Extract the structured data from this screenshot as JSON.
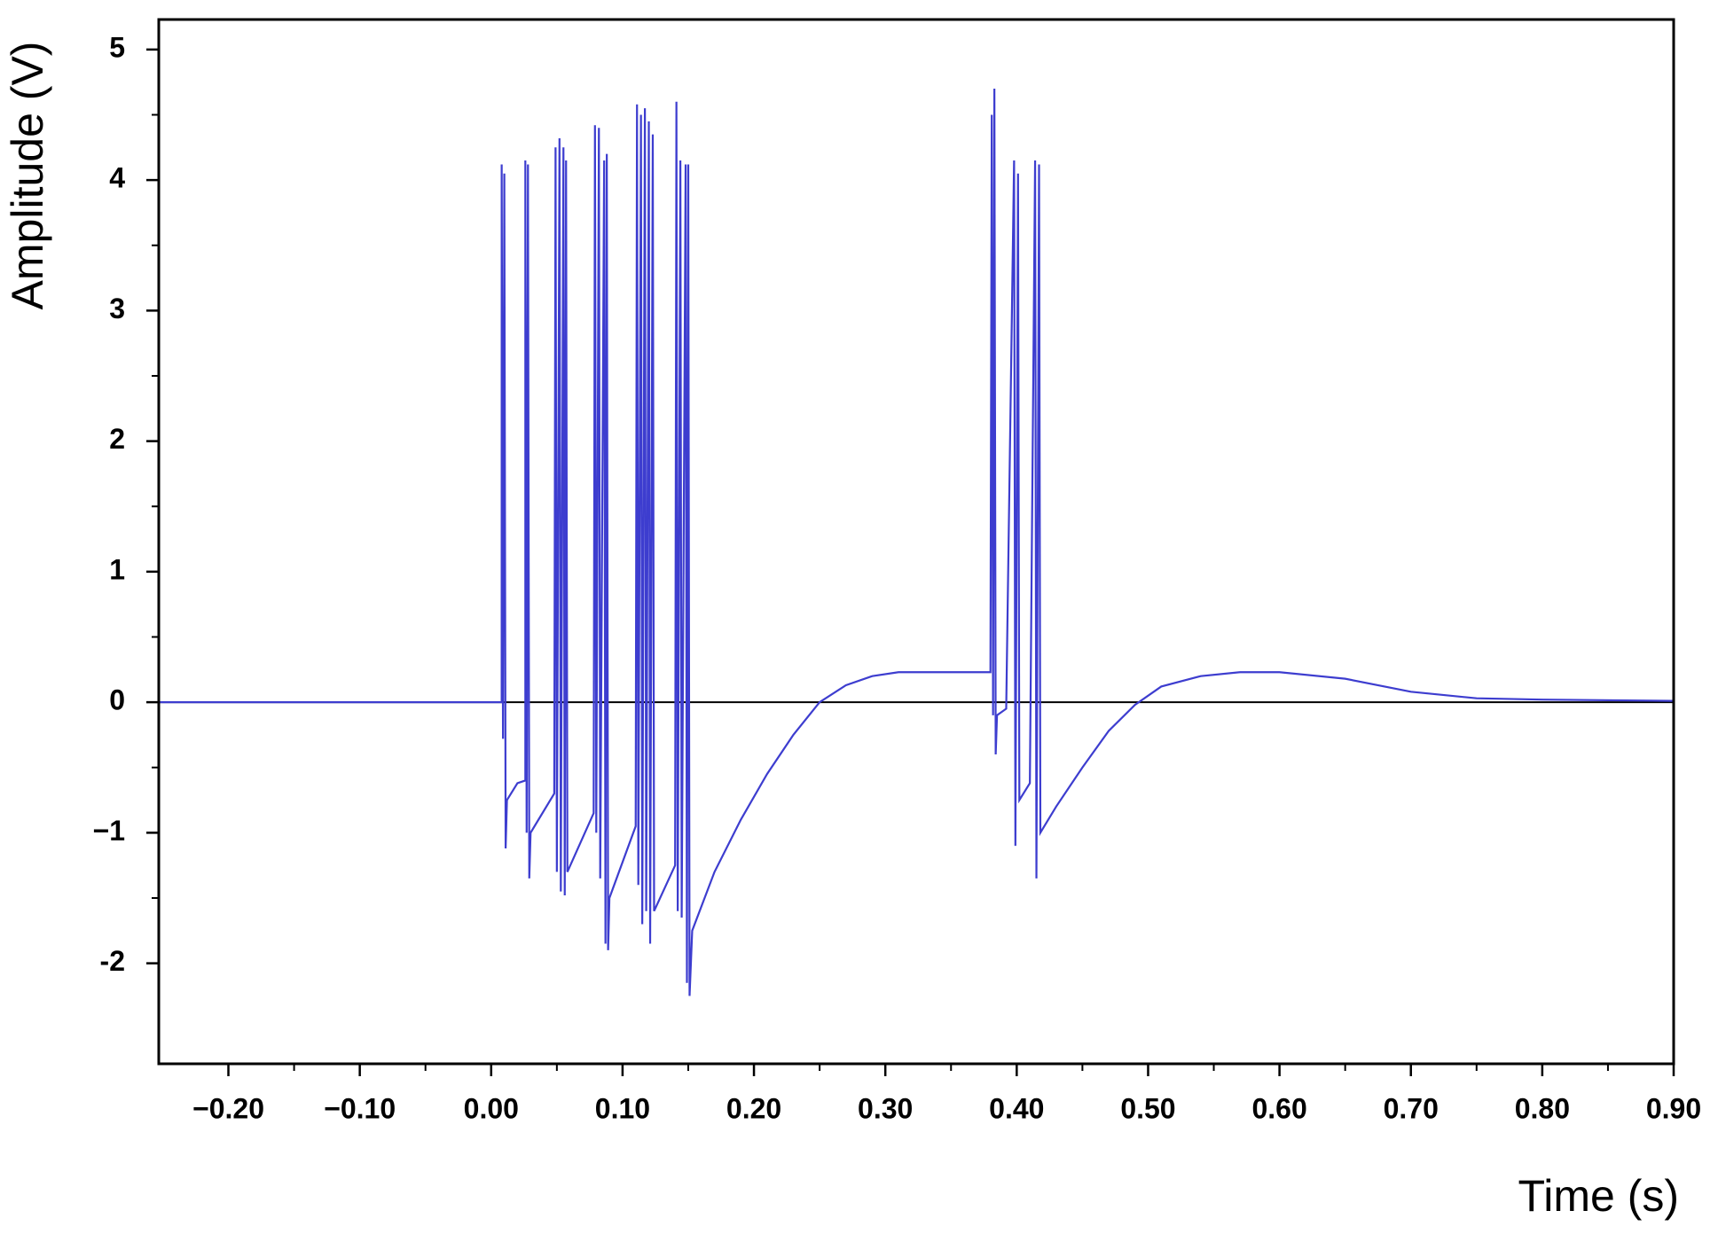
{
  "chart_data": {
    "type": "line",
    "x_label": "Time (s)",
    "y_label": "Amplitude (V)",
    "xlim": [
      -0.253,
      0.9
    ],
    "ylim": [
      -2.77,
      5.23
    ],
    "xticks": [
      {
        "value": -0.2,
        "label": "−0.20"
      },
      {
        "value": -0.1,
        "label": "−0.10"
      },
      {
        "value": 0,
        "label": "0.00"
      },
      {
        "value": 0.1,
        "label": "0.10"
      },
      {
        "value": 0.2,
        "label": "0.20"
      },
      {
        "value": 0.3,
        "label": "0.30"
      },
      {
        "value": 0.4,
        "label": "0.40"
      },
      {
        "value": 0.5,
        "label": "0.50"
      },
      {
        "value": 0.6,
        "label": "0.60"
      },
      {
        "value": 0.7,
        "label": "0.70"
      },
      {
        "value": 0.8,
        "label": "0.80"
      },
      {
        "value": 0.9,
        "label": "0.90"
      }
    ],
    "yticks": [
      {
        "value": -2,
        "label": "-2"
      },
      {
        "value": -1,
        "label": "−1"
      },
      0,
      1,
      2,
      3,
      4,
      5
    ],
    "series": [
      {
        "color": "#3d3dcf",
        "x": [
          -0.253,
          0.008,
          0.008,
          0.009,
          0.01,
          0.011,
          0.012,
          0.02,
          0.026,
          0.026,
          0.027,
          0.028,
          0.029,
          0.03,
          0.048,
          0.049,
          0.05,
          0.052,
          0.053,
          0.055,
          0.056,
          0.057,
          0.058,
          0.078,
          0.079,
          0.08,
          0.082,
          0.083,
          0.086,
          0.087,
          0.088,
          0.089,
          0.09,
          0.11,
          0.111,
          0.112,
          0.114,
          0.115,
          0.117,
          0.118,
          0.12,
          0.121,
          0.123,
          0.124,
          0.14,
          0.141,
          0.142,
          0.144,
          0.145,
          0.148,
          0.149,
          0.15,
          0.151,
          0.153,
          0.17,
          0.19,
          0.21,
          0.23,
          0.25,
          0.27,
          0.29,
          0.31,
          0.35,
          0.38,
          0.381,
          0.382,
          0.383,
          0.384,
          0.385,
          0.392,
          0.398,
          0.399,
          0.401,
          0.402,
          0.41,
          0.414,
          0.415,
          0.417,
          0.418,
          0.43,
          0.45,
          0.47,
          0.49,
          0.51,
          0.54,
          0.57,
          0.6,
          0.65,
          0.7,
          0.75,
          0.8,
          0.9
        ],
        "values": [
          0,
          0,
          4.12,
          -0.28,
          4.05,
          -1.12,
          -0.75,
          -0.62,
          -0.6,
          4.15,
          -1.0,
          4.12,
          -1.35,
          -1.0,
          -0.7,
          4.25,
          -1.3,
          4.32,
          -1.45,
          4.25,
          -1.48,
          4.15,
          -1.3,
          -0.85,
          4.42,
          -1.0,
          4.4,
          -1.35,
          4.15,
          -1.85,
          4.2,
          -1.9,
          -1.5,
          -0.95,
          4.58,
          -1.4,
          4.5,
          -1.7,
          4.55,
          -1.6,
          4.45,
          -1.85,
          4.35,
          -1.6,
          -1.25,
          4.6,
          -1.6,
          4.15,
          -1.65,
          4.12,
          -2.15,
          4.12,
          -2.25,
          -1.75,
          -1.3,
          -0.9,
          -0.55,
          -0.25,
          0.0,
          0.13,
          0.2,
          0.23,
          0.23,
          0.23,
          4.5,
          -0.1,
          4.7,
          -0.4,
          -0.1,
          -0.05,
          4.15,
          -1.1,
          4.05,
          -0.75,
          -0.62,
          4.15,
          -1.35,
          4.12,
          -1.0,
          -0.8,
          -0.5,
          -0.22,
          -0.02,
          0.12,
          0.2,
          0.23,
          0.23,
          0.18,
          0.08,
          0.03,
          0.02,
          0.01
        ]
      }
    ]
  }
}
